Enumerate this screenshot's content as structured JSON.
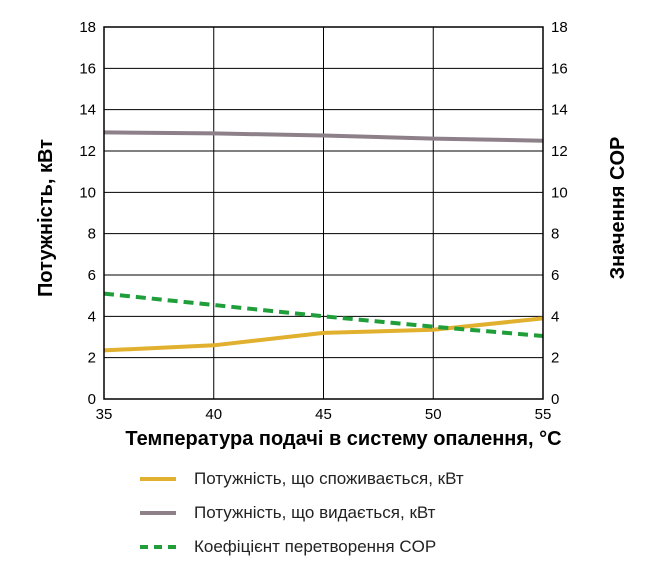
{
  "chart_data": {
    "type": "line",
    "xlabel": "Температура подачі в систему опалення, °C",
    "ylabel_left": "Потужність, кВт",
    "ylabel_right": "Значення COP",
    "xlim": [
      35,
      55
    ],
    "ylim_left": [
      0,
      18
    ],
    "ylim_right": [
      0,
      18
    ],
    "x_ticks": [
      "35",
      "40",
      "45",
      "50",
      "55"
    ],
    "y_ticks": [
      "0",
      "2",
      "4",
      "6",
      "8",
      "10",
      "12",
      "14",
      "16",
      "18"
    ],
    "grid": true,
    "legend_position": "bottom",
    "series": [
      {
        "name": "Потужність, що споживається, кВт",
        "color": "#E0B02E",
        "style": "solid",
        "axis": "left",
        "x": [
          35,
          40,
          45,
          50,
          55
        ],
        "y": [
          2.35,
          2.6,
          3.2,
          3.35,
          3.9
        ]
      },
      {
        "name": "Потужність, що видається, кВт",
        "color": "#8E8089",
        "style": "solid",
        "axis": "left",
        "x": [
          35,
          40,
          45,
          50,
          55
        ],
        "y": [
          12.9,
          12.85,
          12.75,
          12.6,
          12.5
        ]
      },
      {
        "name": "Коефіцієнт перетворення COP",
        "color": "#1F9E3A",
        "style": "dashed",
        "axis": "right",
        "x": [
          35,
          40,
          45,
          50,
          55
        ],
        "y": [
          5.1,
          4.55,
          4.0,
          3.5,
          3.05
        ]
      }
    ]
  }
}
